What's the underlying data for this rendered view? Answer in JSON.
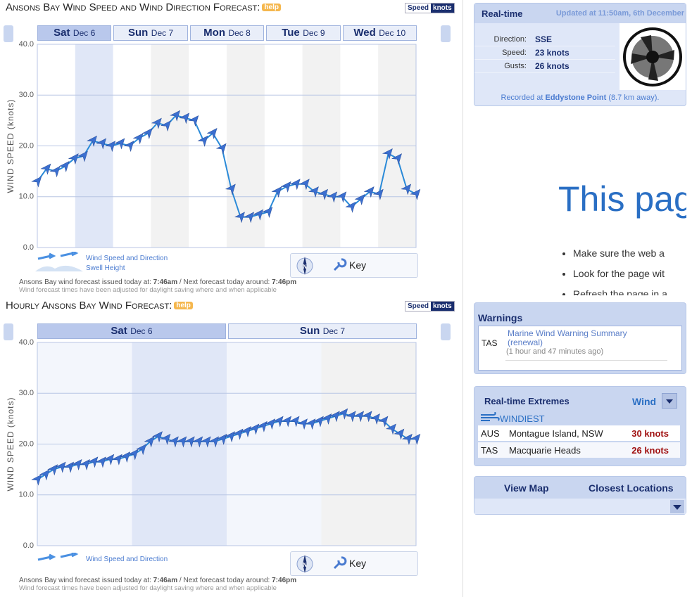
{
  "chart_data": [
    {
      "type": "line",
      "title": "Ansons Bay Wind Speed and Wind Direction Forecast:",
      "help": "help",
      "units": [
        "Speed",
        "knots"
      ],
      "days": [
        {
          "day": "Sat",
          "date": "Dec 6"
        },
        {
          "day": "Sun",
          "date": "Dec 7"
        },
        {
          "day": "Mon",
          "date": "Dec 8"
        },
        {
          "day": "Tue",
          "date": "Dec 9"
        },
        {
          "day": "Wed",
          "date": "Dec 10"
        }
      ],
      "ylabel": "WIND SPEED (knots)",
      "values": [
        13,
        15.5,
        15,
        16,
        17.5,
        18,
        21,
        20.5,
        20,
        20.5,
        20,
        21.5,
        22.5,
        24.5,
        24,
        26,
        25.5,
        25,
        21,
        22.5,
        19.5,
        11.5,
        6,
        6,
        6.5,
        7,
        11,
        12,
        12.5,
        12.5,
        11,
        10.5,
        10,
        10,
        8,
        9.5,
        11,
        10.5,
        18.5,
        17.5,
        11.5,
        10.5
      ],
      "color": "#2a8ad8",
      "marker_color": "#3b6fd0",
      "ylim": [
        0,
        40
      ],
      "yticks": [
        {
          "value": 0,
          "label": "0.0"
        },
        {
          "value": 10,
          "label": "10.0"
        },
        {
          "value": 20,
          "label": "20.0"
        },
        {
          "value": 30,
          "label": "30.0"
        },
        {
          "value": 40,
          "label": "40.0"
        }
      ],
      "grid": true,
      "legend": [
        "Wind Speed and Direction",
        "Swell Height"
      ],
      "compass": "N",
      "key": "Key",
      "issued": [
        "Ansons Bay wind forecast issued today at:",
        "7:46am",
        "/ Next forecast today around:",
        "7:46pm"
      ],
      "note": "Wind forecast times have been adjusted for daylight saving where and when applicable"
    },
    {
      "type": "line",
      "title": "Hourly Ansons Bay Wind Forecast:",
      "help": "help",
      "units": [
        "Speed",
        "knots"
      ],
      "days": [
        {
          "day": "Sat",
          "date": "Dec 6"
        },
        {
          "day": "Sun",
          "date": "Dec 7"
        }
      ],
      "ylabel": "WIND SPEED (knots)",
      "values": [
        13,
        14,
        15,
        15.5,
        15.5,
        16,
        16,
        16.5,
        16.5,
        17,
        17,
        17.5,
        18,
        19,
        20.5,
        21.5,
        21,
        20.5,
        20.5,
        20.5,
        20.5,
        20.5,
        20.5,
        21,
        21.5,
        22,
        22.5,
        23,
        23.5,
        24,
        24.5,
        24.5,
        24.5,
        24,
        24,
        24.5,
        25,
        25.5,
        26,
        25.5,
        25.5,
        25.5,
        25,
        24.5,
        23,
        22,
        21,
        21
      ],
      "color": "#2a8ad8",
      "marker_color": "#3b6fd0",
      "ylim": [
        0,
        40
      ],
      "yticks": [
        {
          "value": 0,
          "label": "0.0"
        },
        {
          "value": 10,
          "label": "10.0"
        },
        {
          "value": 20,
          "label": "20.0"
        },
        {
          "value": 30,
          "label": "30.0"
        },
        {
          "value": 40,
          "label": "40.0"
        }
      ],
      "grid": true,
      "legend": [
        "Wind Speed and Direction"
      ],
      "compass": "N",
      "key": "Key",
      "issued": [
        "Ansons Bay wind forecast issued today at:",
        "7:46am",
        "/ Next forecast today around:",
        "7:46pm"
      ],
      "note": "Wind forecast times have been adjusted for daylight saving where and when applicable"
    }
  ],
  "realtime": {
    "title": "Real-time",
    "updated": "Updated at 11:50am, 6th December",
    "rows": [
      {
        "label": "Direction:",
        "value": "SSE"
      },
      {
        "label": "Speed:",
        "value": "23 knots"
      },
      {
        "label": "Gusts:",
        "value": "26 knots"
      }
    ],
    "recorded": [
      "Recorded at",
      "Eddystone Point",
      "(8.7 km away)."
    ]
  },
  "error_page": {
    "heading": "This pag",
    "bullets": [
      "Make sure the web a",
      "Look for the page wit",
      "Refresh the page in a"
    ]
  },
  "warnings": {
    "title": "Warnings",
    "state": "TAS",
    "link": "Marine Wind Warning Summary (renewal)",
    "time": "(1 hour and 47 minutes ago)"
  },
  "extremes": {
    "title": "Real-time Extremes",
    "selector": "Wind",
    "heading": "WINDIEST",
    "rows": [
      {
        "region": "AUS",
        "place": "Montague Island, NSW",
        "value": "30 knots"
      },
      {
        "region": "TAS",
        "place": "Macquarie Heads",
        "value": "26 knots"
      }
    ]
  },
  "map_links": [
    "View Map",
    "Closest Locations"
  ]
}
